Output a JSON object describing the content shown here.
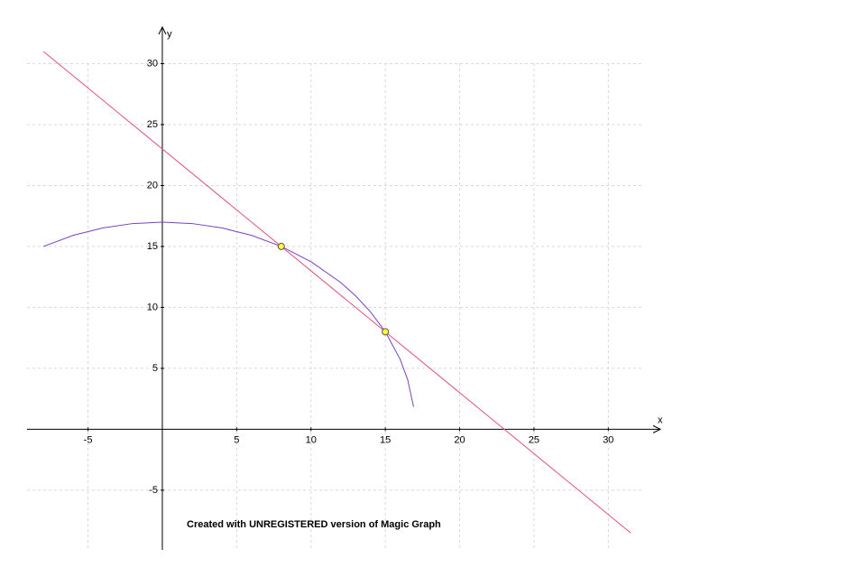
{
  "chart_data": {
    "type": "line",
    "x_label": "x",
    "y_label": "y",
    "annotation": "Created with UNREGISTERED version of Magic Graph",
    "xlim": [
      -9.1,
      33.5
    ],
    "ylim": [
      -9.9,
      33
    ],
    "xticks": [
      -5,
      5,
      10,
      15,
      20,
      25,
      30
    ],
    "yticks": [
      -5,
      5,
      10,
      15,
      20,
      25,
      30
    ],
    "grid": true,
    "series": [
      {
        "color": "#7b3fc4",
        "x": [
          -8,
          -6,
          -4,
          -2,
          0,
          2,
          4,
          6,
          8,
          10,
          12,
          13,
          14,
          15,
          16,
          16.5,
          16.9
        ],
        "values": [
          15,
          15.91,
          16.52,
          16.88,
          17,
          16.88,
          16.52,
          15.91,
          15,
          13.75,
          12.04,
          10.95,
          9.64,
          8,
          5.74,
          4.09,
          1.84
        ]
      },
      {
        "color": "#e0507f",
        "x": [
          -8,
          31.5
        ],
        "values": [
          31,
          -8.5
        ]
      },
      {
        "color": "#ffff33",
        "marker": true,
        "x": [
          8,
          15
        ],
        "values": [
          15,
          8
        ]
      }
    ]
  }
}
